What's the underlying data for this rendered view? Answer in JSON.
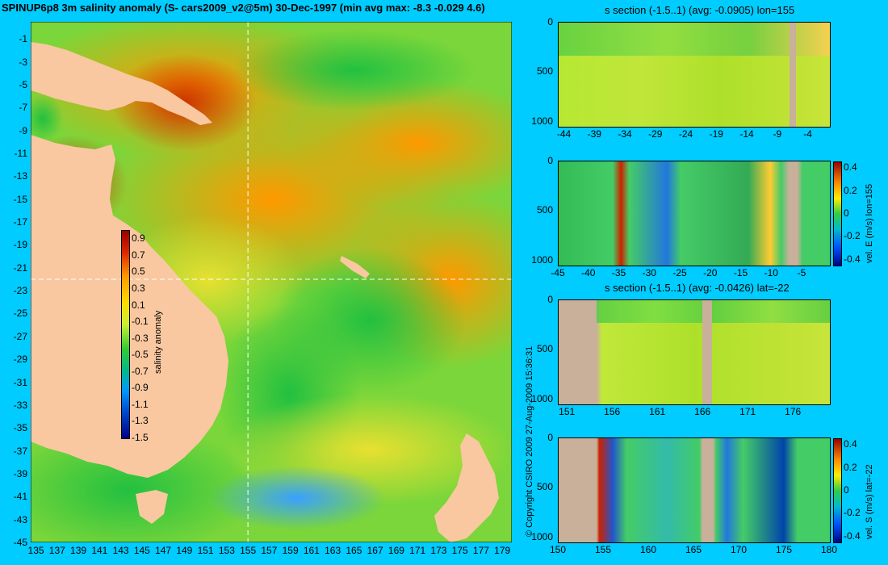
{
  "main_title": "SPINUP6p8 3m salinity anomaly (S- cars2009_v2@5m) 30-Dec-1997 (min avg max: -8.3 -0.029 4.6)",
  "copyright": "© Copyright CSIRO 2009   27-Aug-2009 15:36:31",
  "colors": {
    "land": "#f9c8a0",
    "section_land": "#c8b09a",
    "background": "#00ccff",
    "grid": "#ffffff"
  },
  "chart_data": [
    {
      "id": "map",
      "type": "heatmap",
      "title": "SPINUP6p8 3m salinity anomaly (S- cars2009_v2@5m) 30-Dec-1997 (min avg max: -8.3 -0.029 4.6)",
      "x_ticks": [
        "135",
        "137",
        "139",
        "141",
        "143",
        "145",
        "147",
        "149",
        "151",
        "153",
        "155",
        "157",
        "159",
        "161",
        "163",
        "165",
        "167",
        "169",
        "171",
        "173",
        "175",
        "177",
        "179"
      ],
      "y_ticks": [
        "-1",
        "-3",
        "-5",
        "-7",
        "-9",
        "-11",
        "-13",
        "-15",
        "-17",
        "-19",
        "-21",
        "-23",
        "-25",
        "-27",
        "-29",
        "-31",
        "-33",
        "-35",
        "-37",
        "-39",
        "-41",
        "-43",
        "-45"
      ],
      "xlim": [
        134.5,
        179.9
      ],
      "ylim": [
        -45,
        0.5
      ],
      "reference_lines": {
        "lon": 155,
        "lat": -22
      },
      "colorbar": {
        "label": "salinity anomaly",
        "ticks": [
          "0.9",
          "0.7",
          "0.5",
          "0.3",
          "0.1",
          "-0.1",
          "-0.3",
          "-0.5",
          "-0.7",
          "-0.9",
          "-1.1",
          "-1.3",
          "-1.5"
        ],
        "range": [
          -1.5,
          1.0
        ]
      }
    },
    {
      "id": "s-section-lon",
      "type": "heatmap",
      "title": "s section (-1.5..1) (avg: -0.0905) lon=155",
      "x_ticks": [
        "-44",
        "-39",
        "-34",
        "-29",
        "-24",
        "-19",
        "-14",
        "-9",
        "-4"
      ],
      "y_ticks": [
        "0",
        "500",
        "1000"
      ],
      "xlim": [
        -45,
        -0.5
      ],
      "ylim": [
        1050,
        0
      ]
    },
    {
      "id": "velE-section-lon",
      "type": "heatmap",
      "title": "",
      "x_ticks": [
        "-45",
        "-40",
        "-35",
        "-30",
        "-25",
        "-20",
        "-15",
        "-10",
        "-5"
      ],
      "y_ticks": [
        "0",
        "500",
        "1000"
      ],
      "xlim": [
        -45,
        -0.5
      ],
      "ylim": [
        1050,
        0
      ],
      "colorbar": {
        "label": "vel. E (m/s) lon=155",
        "ticks": [
          "0.4",
          "0.2",
          "0",
          "-0.2",
          "-0.4"
        ],
        "range": [
          -0.45,
          0.45
        ]
      }
    },
    {
      "id": "s-section-lat",
      "type": "heatmap",
      "title": "s section (-1.5..1) (avg: -0.0426) lat=-22",
      "x_ticks": [
        "151",
        "156",
        "161",
        "166",
        "171",
        "176"
      ],
      "y_ticks": [
        "0",
        "500",
        "1000"
      ],
      "xlim": [
        150,
        180
      ],
      "ylim": [
        1050,
        0
      ]
    },
    {
      "id": "velS-section-lat",
      "type": "heatmap",
      "title": "",
      "x_ticks": [
        "150",
        "155",
        "160",
        "165",
        "170",
        "175",
        "180"
      ],
      "y_ticks": [
        "0",
        "500",
        "1000"
      ],
      "xlim": [
        150,
        180
      ],
      "ylim": [
        1050,
        0
      ],
      "colorbar": {
        "label": "vel. S (m/s) lat=-22",
        "ticks": [
          "0.4",
          "0.2",
          "0",
          "-0.2",
          "-0.4"
        ],
        "range": [
          -0.45,
          0.45
        ]
      }
    }
  ]
}
